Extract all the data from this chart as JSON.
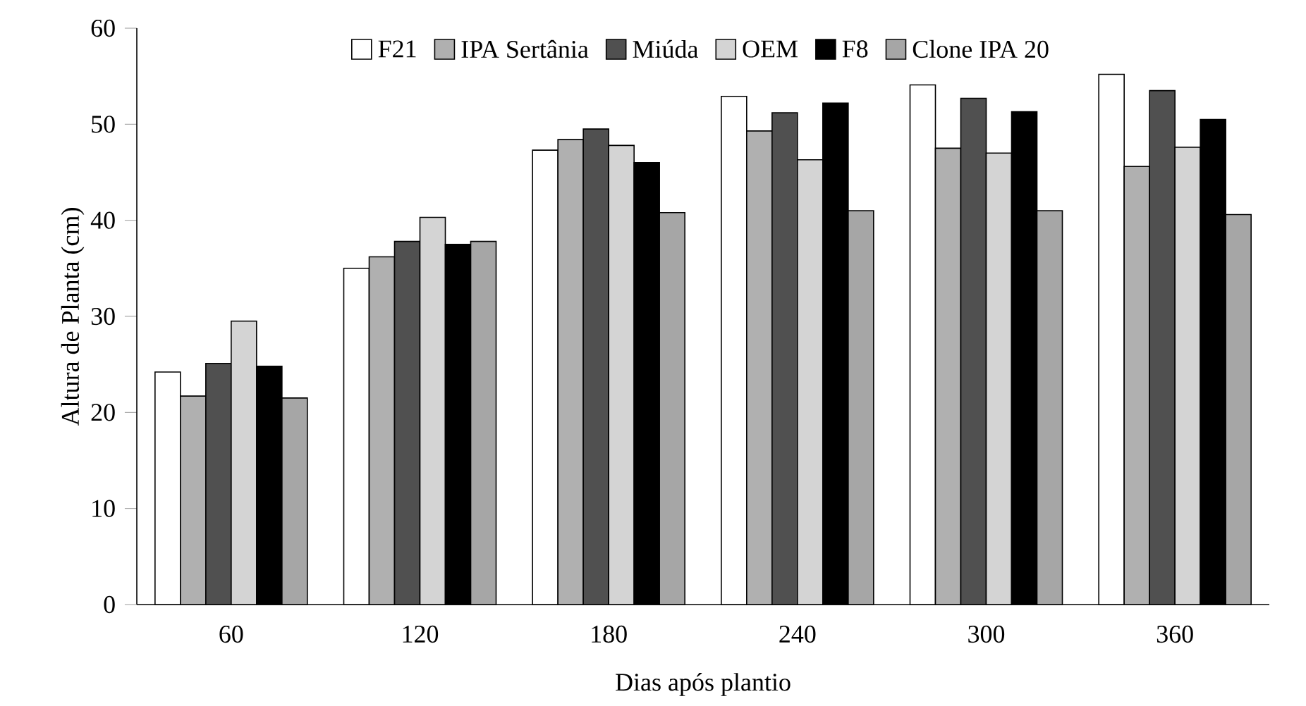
{
  "chart_data": {
    "type": "bar",
    "xlabel": "Dias após plantio",
    "ylabel": "Altura de Planta (cm)",
    "categories": [
      "60",
      "120",
      "180",
      "240",
      "300",
      "360"
    ],
    "series": [
      {
        "name": "F21",
        "color": "#ffffff",
        "values": [
          24.2,
          35.0,
          47.3,
          52.9,
          54.1,
          55.2
        ]
      },
      {
        "name": "IPA Sertânia",
        "color": "#b0b0b0",
        "values": [
          21.7,
          36.2,
          48.4,
          49.3,
          47.5,
          45.6
        ]
      },
      {
        "name": "Miúda",
        "color": "#505050",
        "values": [
          25.1,
          37.8,
          49.5,
          51.2,
          52.7,
          53.5
        ]
      },
      {
        "name": "OEM",
        "color": "#d4d4d4",
        "values": [
          29.5,
          40.3,
          47.8,
          46.3,
          47.0,
          47.6
        ]
      },
      {
        "name": "F8",
        "color": "#000000",
        "values": [
          24.8,
          37.5,
          46.0,
          52.2,
          51.3,
          50.5
        ]
      },
      {
        "name": "Clone IPA 20",
        "color": "#a6a6a6",
        "values": [
          21.5,
          37.8,
          40.8,
          41.0,
          41.0,
          40.6
        ]
      }
    ],
    "ylim": [
      0,
      60
    ],
    "yticks": [
      0,
      10,
      20,
      30,
      40,
      50,
      60
    ],
    "legend": "top"
  }
}
